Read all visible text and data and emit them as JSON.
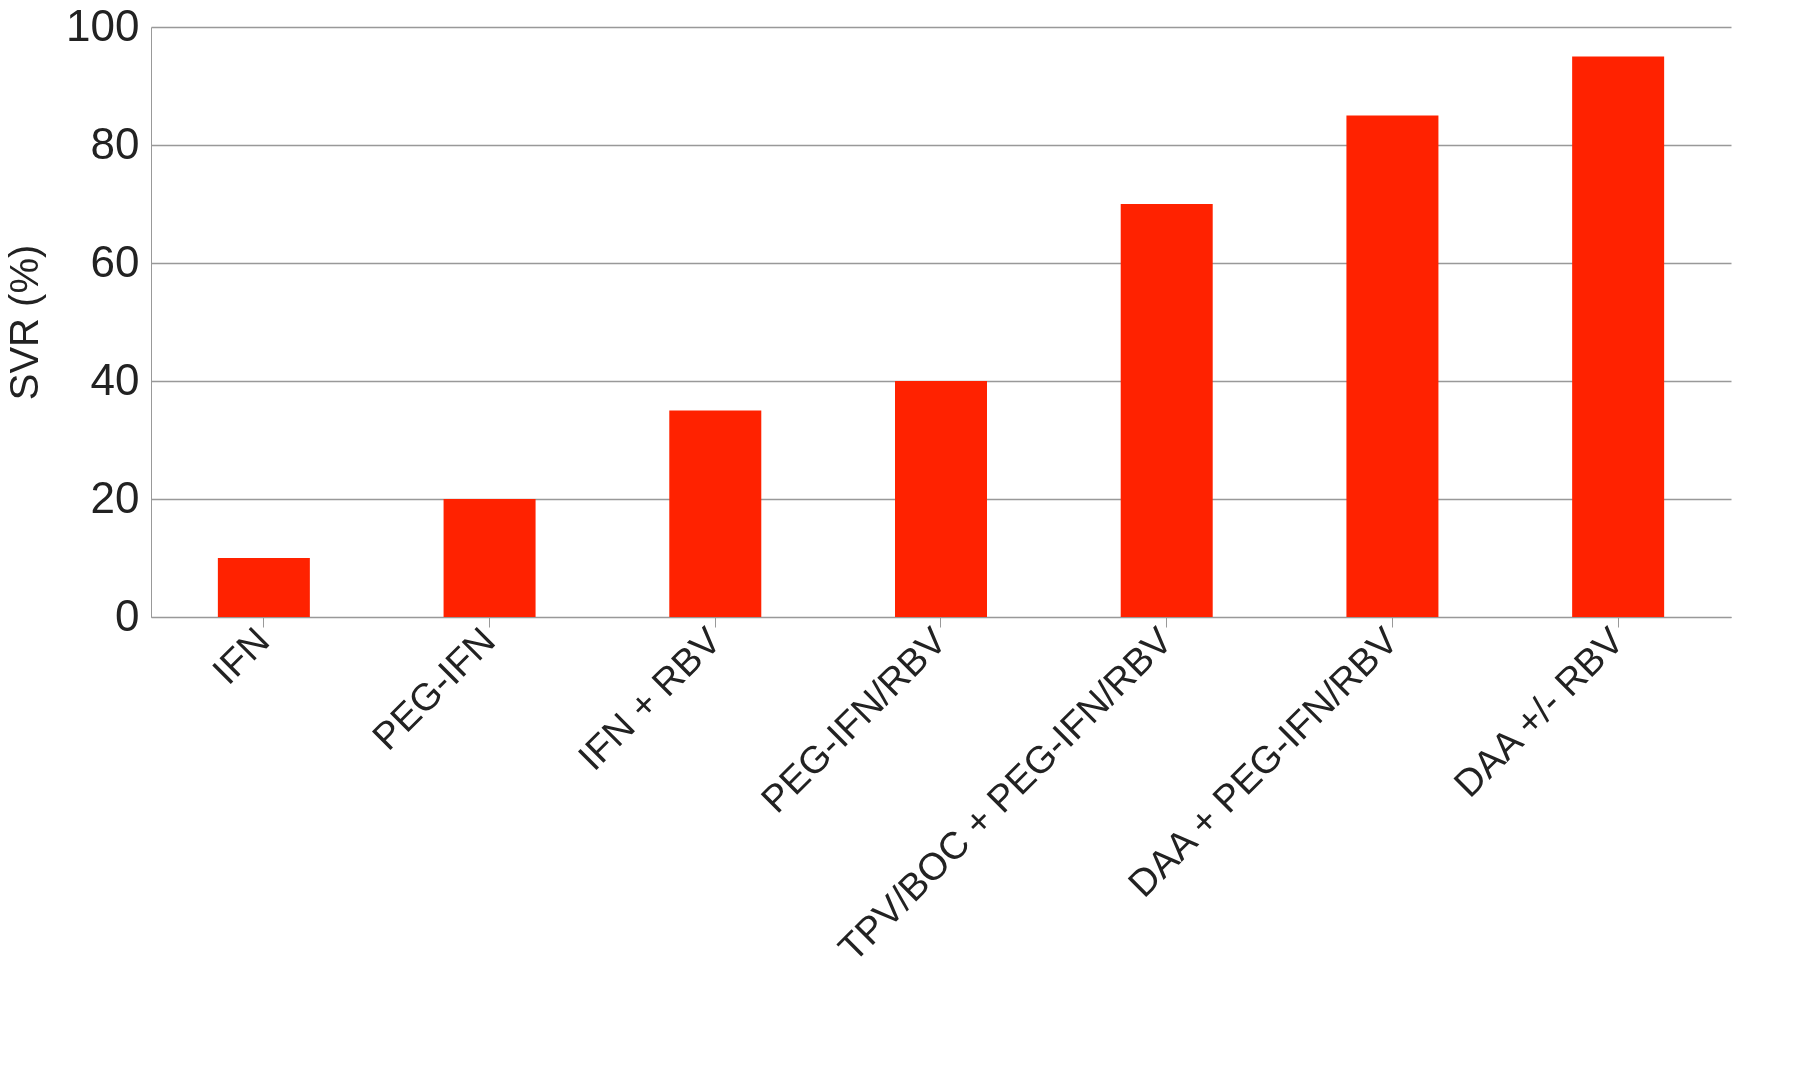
{
  "chart_data": {
    "type": "bar",
    "ylabel": "SVR (%)",
    "categories": [
      "IFN",
      "PEG-IFN",
      "IFN + RBV",
      "PEG-IFN/RBV",
      "TPV/BOC + PEG-IFN/RBV",
      "DAA + PEG-IFN/RBV",
      "DAA +/- RBV"
    ],
    "values": [
      10,
      20,
      35,
      40,
      70,
      85,
      95
    ],
    "color": "#ff2200",
    "ylim": [
      0,
      100
    ],
    "yticks": [
      0,
      20,
      40,
      60,
      80,
      100
    ],
    "grid": "y"
  }
}
